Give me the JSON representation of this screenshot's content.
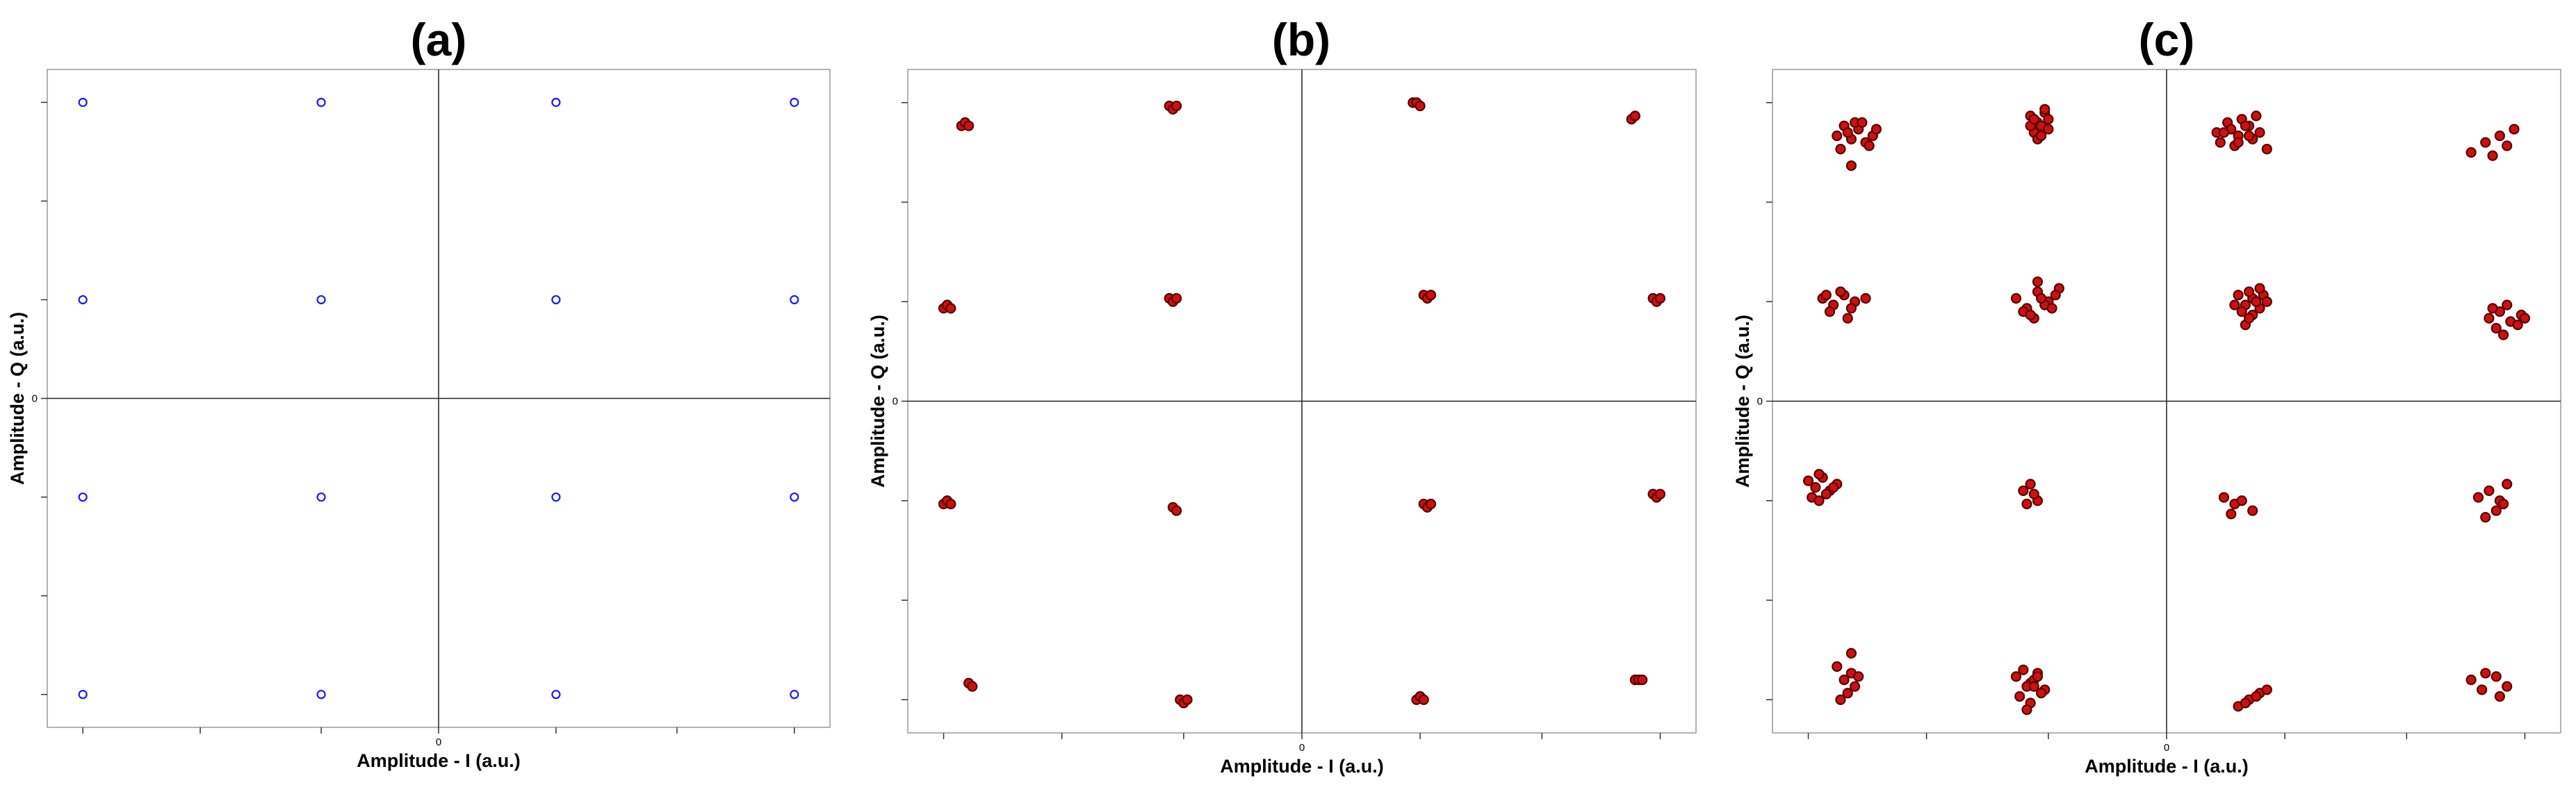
{
  "chart_data": [
    {
      "type": "scatter",
      "title": "(a)",
      "xlabel": "Amplitude - I (a.u.)",
      "ylabel": "Amplitude - Q (a.u.)",
      "origin_x_label": "0",
      "origin_y_label": "0",
      "xlim": [
        -1.1,
        1.1
      ],
      "ylim": [
        -1.0,
        1.0
      ],
      "grid": false,
      "marker_color": "#1a1aff",
      "marker_fill": "#ffffff",
      "series": [
        {
          "x": [
            -1.0,
            -0.33,
            0.33,
            1.0,
            -1.0,
            -0.33,
            0.33,
            1.0,
            -1.0,
            -0.33,
            0.33,
            1.0,
            -1.0,
            -0.33,
            0.33,
            1.0
          ],
          "y": [
            0.9,
            0.9,
            0.9,
            0.9,
            0.3,
            0.3,
            0.3,
            0.3,
            -0.3,
            -0.3,
            -0.3,
            -0.3,
            -0.9,
            -0.9,
            -0.9,
            -0.9
          ]
        }
      ]
    },
    {
      "type": "scatter",
      "title": "(b)",
      "xlabel": "Amplitude - I (a.u.)",
      "ylabel": "Amplitude - Q (a.u.)",
      "origin_x_label": "0",
      "origin_y_label": "0",
      "xlim": [
        -1.1,
        1.1
      ],
      "ylim": [
        -1.0,
        1.0
      ],
      "grid": false,
      "marker_color": "#5a0000",
      "marker_fill": "#cc1111",
      "series": [
        {
          "x": [
            -0.95,
            -0.94,
            -0.93,
            -0.37,
            -0.36,
            -0.35,
            0.31,
            0.32,
            0.33,
            0.92,
            0.93,
            -1.0,
            -0.99,
            -0.98,
            -0.37,
            -0.36,
            -0.35,
            0.34,
            0.35,
            0.36,
            0.98,
            0.99,
            1.0,
            -1.0,
            -0.99,
            -0.98,
            -0.36,
            -0.35,
            0.34,
            0.35,
            0.36,
            0.98,
            0.99,
            1.0,
            -0.93,
            -0.92,
            -0.34,
            -0.33,
            -0.32,
            0.32,
            0.33,
            0.34,
            0.93,
            0.94,
            0.95
          ],
          "y": [
            0.83,
            0.84,
            0.83,
            0.89,
            0.88,
            0.89,
            0.9,
            0.9,
            0.89,
            0.85,
            0.86,
            0.28,
            0.29,
            0.28,
            0.31,
            0.3,
            0.31,
            0.32,
            0.31,
            0.32,
            0.31,
            0.3,
            0.31,
            -0.31,
            -0.3,
            -0.31,
            -0.32,
            -0.33,
            -0.31,
            -0.32,
            -0.31,
            -0.28,
            -0.29,
            -0.28,
            -0.85,
            -0.86,
            -0.9,
            -0.91,
            -0.9,
            -0.9,
            -0.89,
            -0.9,
            -0.84,
            -0.84,
            -0.84
          ]
        }
      ]
    },
    {
      "type": "scatter",
      "title": "(c)",
      "xlabel": "Amplitude - I (a.u.)",
      "ylabel": "Amplitude - Q (a.u.)",
      "origin_x_label": "0",
      "origin_y_label": "0",
      "xlim": [
        -1.1,
        1.1
      ],
      "ylim": [
        -1.0,
        1.0
      ],
      "grid": false,
      "marker_color": "#5a0000",
      "marker_fill": "#cc1111",
      "series": [
        {
          "x": [
            -0.92,
            -0.9,
            -0.88,
            -0.86,
            -0.84,
            -0.82,
            -0.91,
            -0.87,
            -0.83,
            -0.89,
            -0.85,
            -0.81,
            -0.88,
            -0.38,
            -0.36,
            -0.34,
            -0.37,
            -0.35,
            -0.33,
            -0.36,
            -0.34,
            -0.38,
            -0.35,
            -0.33,
            -0.37,
            0.14,
            0.17,
            0.2,
            0.23,
            0.26,
            0.15,
            0.18,
            0.21,
            0.24,
            0.19,
            0.22,
            0.16,
            0.25,
            0.2,
            0.28,
            0.23,
            0.85,
            0.89,
            0.93,
            0.97,
            0.91,
            0.95,
            -0.96,
            -0.93,
            -0.9,
            -0.87,
            -0.94,
            -0.91,
            -0.88,
            -0.95,
            -0.89,
            -0.84,
            -0.42,
            -0.39,
            -0.36,
            -0.33,
            -0.3,
            -0.4,
            -0.37,
            -0.34,
            -0.31,
            -0.38,
            -0.35,
            -0.32,
            -0.36,
            0.2,
            0.22,
            0.24,
            0.26,
            0.21,
            0.23,
            0.25,
            0.27,
            0.22,
            0.24,
            0.19,
            0.26,
            0.23,
            0.28,
            0.9,
            0.93,
            0.96,
            0.99,
            0.92,
            0.95,
            0.98,
            0.94,
            1.0,
            0.91,
            -1.0,
            -0.98,
            -0.96,
            -0.94,
            -0.92,
            -0.99,
            -0.97,
            -0.95,
            -0.93,
            -0.97,
            -0.4,
            -0.38,
            -0.36,
            -0.39,
            -0.37,
            0.16,
            0.19,
            0.21,
            0.18,
            0.24,
            0.87,
            0.9,
            0.93,
            0.95,
            0.92,
            0.89,
            0.94,
            -0.92,
            -0.9,
            -0.88,
            -0.86,
            -0.89,
            -0.87,
            -0.91,
            -0.88,
            -0.42,
            -0.4,
            -0.38,
            -0.36,
            -0.34,
            -0.41,
            -0.39,
            -0.37,
            -0.35,
            -0.38,
            -0.36,
            -0.39,
            -0.37,
            0.2,
            0.23,
            0.26,
            0.28,
            0.22,
            0.25,
            0.85,
            0.88,
            0.92,
            0.95,
            0.89,
            0.93
          ],
          "y": [
            0.8,
            0.83,
            0.79,
            0.82,
            0.78,
            0.8,
            0.76,
            0.84,
            0.77,
            0.81,
            0.84,
            0.82,
            0.71,
            0.86,
            0.84,
            0.87,
            0.81,
            0.83,
            0.85,
            0.79,
            0.88,
            0.83,
            0.8,
            0.82,
            0.85,
            0.81,
            0.84,
            0.8,
            0.83,
            0.81,
            0.78,
            0.82,
            0.85,
            0.79,
            0.77,
            0.83,
            0.81,
            0.86,
            0.78,
            0.76,
            0.8,
            0.75,
            0.78,
            0.8,
            0.82,
            0.74,
            0.77,
            0.31,
            0.29,
            0.32,
            0.3,
            0.27,
            0.33,
            0.28,
            0.32,
            0.25,
            0.31,
            0.31,
            0.28,
            0.33,
            0.3,
            0.34,
            0.27,
            0.25,
            0.29,
            0.32,
            0.26,
            0.31,
            0.28,
            0.36,
            0.32,
            0.29,
            0.31,
            0.28,
            0.27,
            0.33,
            0.3,
            0.32,
            0.23,
            0.26,
            0.29,
            0.34,
            0.25,
            0.3,
            0.25,
            0.27,
            0.24,
            0.26,
            0.22,
            0.29,
            0.23,
            0.2,
            0.25,
            0.28,
            -0.24,
            -0.26,
            -0.23,
            -0.27,
            -0.25,
            -0.29,
            -0.22,
            -0.28,
            -0.26,
            -0.3,
            -0.27,
            -0.25,
            -0.3,
            -0.31,
            -0.28,
            -0.29,
            -0.31,
            -0.3,
            -0.34,
            -0.33,
            -0.29,
            -0.27,
            -0.3,
            -0.25,
            -0.33,
            -0.35,
            -0.31,
            -0.8,
            -0.84,
            -0.82,
            -0.83,
            -0.88,
            -0.86,
            -0.9,
            -0.76,
            -0.83,
            -0.81,
            -0.85,
            -0.82,
            -0.87,
            -0.89,
            -0.86,
            -0.84,
            -0.88,
            -0.91,
            -0.83,
            -0.93,
            -0.86,
            -0.92,
            -0.9,
            -0.88,
            -0.87,
            -0.91,
            -0.89,
            -0.84,
            -0.87,
            -0.83,
            -0.86,
            -0.82,
            -0.89
          ]
        }
      ]
    }
  ]
}
